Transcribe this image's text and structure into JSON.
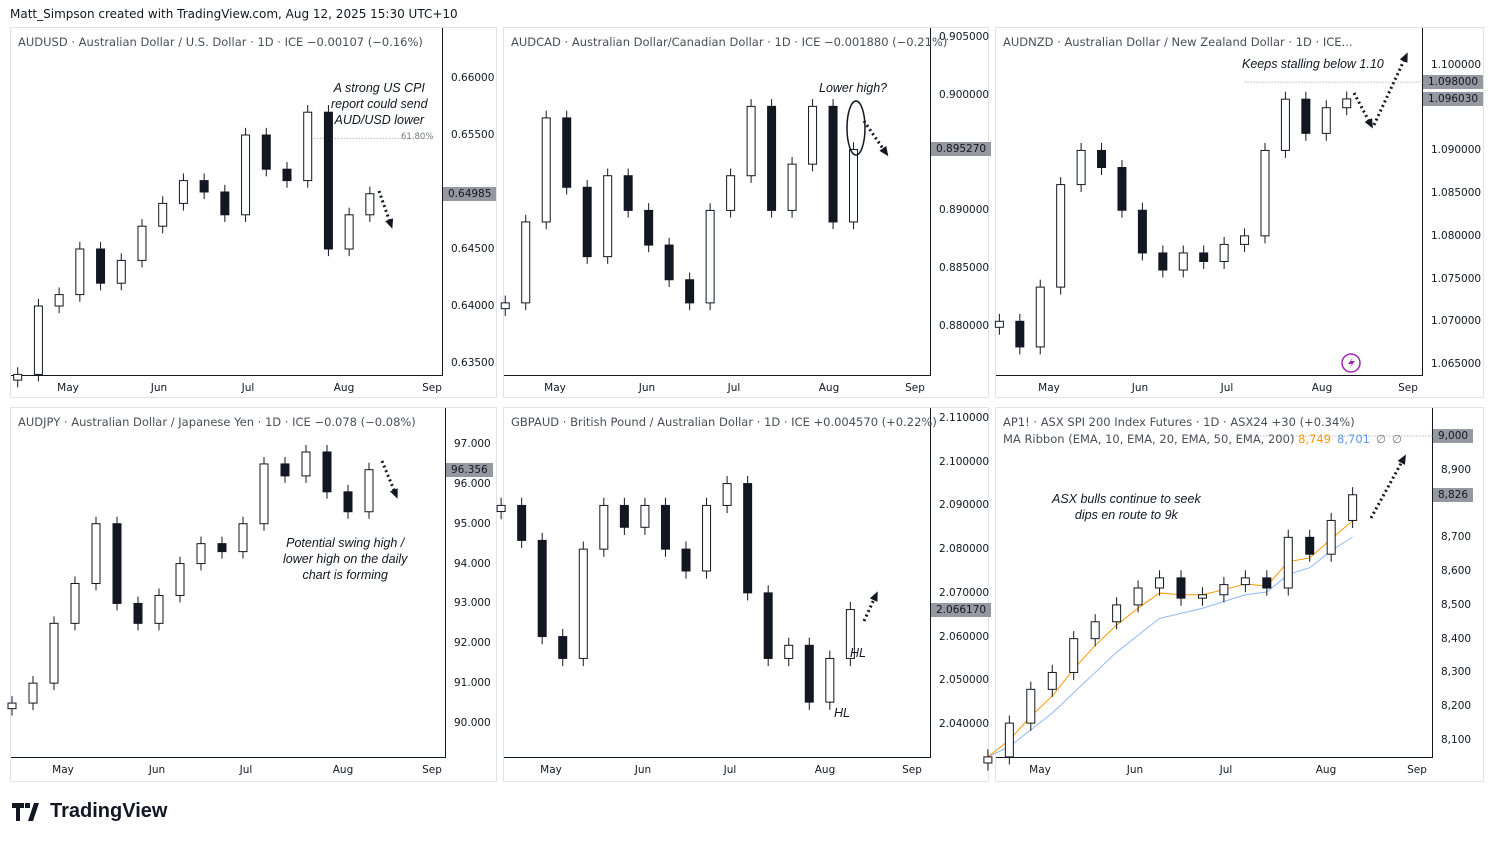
{
  "credit": "Matt_Simpson created with TradingView.com, Aug 12, 2025 15:30 UTC+10",
  "logo": "TradingView",
  "chart_data": [
    {
      "type": "candlestick",
      "id": "audusd",
      "title": "AUDUSD · Australian Dollar / U.S. Dollar · 1D · ICE  −0.00107 (−0.16%)",
      "x_ticks": [
        "May",
        "Jun",
        "Jul",
        "Aug",
        "Sep"
      ],
      "y_ticks": [
        "0.66000",
        "0.65500",
        "0.64500",
        "0.64000",
        "0.63500"
      ],
      "y_tick_values": [
        0.66,
        0.655,
        0.645,
        0.64,
        0.635
      ],
      "ylim": [
        0.6325,
        0.6635
      ],
      "last_price": "0.64985",
      "last_value": 0.64985,
      "fib_label": "61.80%",
      "fib_value": 0.6547,
      "annotation": "A strong US CPI\nreport could send\nAUD/USD lower",
      "x": [
        "Apr 14",
        "Apr 21",
        "Apr 28",
        "May 5",
        "May 12",
        "May 19",
        "May 26",
        "Jun 2",
        "Jun 9",
        "Jun 16",
        "Jun 23",
        "Jun 30",
        "Jul 7",
        "Jul 14",
        "Jul 21",
        "Jul 28",
        "Aug 4",
        "Aug 11"
      ],
      "close": [
        0.634,
        0.64,
        0.641,
        0.645,
        0.642,
        0.644,
        0.647,
        0.649,
        0.651,
        0.65,
        0.648,
        0.655,
        0.652,
        0.651,
        0.657,
        0.645,
        0.648,
        0.64985
      ]
    },
    {
      "type": "candlestick",
      "id": "audcad",
      "title": "AUDCAD · Australian Dollar/Canadian Dollar · 1D · ICE  −0.001880 (−0.21%)",
      "x_ticks": [
        "May",
        "Jun",
        "Jul",
        "Aug",
        "Sep"
      ],
      "y_ticks": [
        "0.905000",
        "0.900000",
        "0.890000",
        "0.885000",
        "0.880000"
      ],
      "y_tick_values": [
        0.905,
        0.9,
        0.89,
        0.885,
        0.88
      ],
      "ylim": [
        0.8765,
        0.9055
      ],
      "last_price": "0.895270",
      "last_value": 0.89527,
      "annotation": "Lower high?",
      "x": [
        "Apr 14",
        "Apr 21",
        "Apr 28",
        "May 5",
        "May 12",
        "May 19",
        "May 26",
        "Jun 2",
        "Jun 9",
        "Jun 16",
        "Jun 23",
        "Jun 30",
        "Jul 7",
        "Jul 14",
        "Jul 21",
        "Jul 28",
        "Aug 4",
        "Aug 11"
      ],
      "close": [
        0.882,
        0.889,
        0.898,
        0.892,
        0.886,
        0.893,
        0.89,
        0.887,
        0.884,
        0.882,
        0.89,
        0.893,
        0.899,
        0.89,
        0.894,
        0.899,
        0.889,
        0.89527
      ]
    },
    {
      "type": "candlestick",
      "id": "audnzd",
      "title": "AUDNZD · Australian Dollar / New Zealand Dollar · 1D · ICE...",
      "x_ticks": [
        "May",
        "Jun",
        "Jul",
        "Aug",
        "Sep"
      ],
      "y_ticks": [
        "1.100000",
        "1.090000",
        "1.085000",
        "1.080000",
        "1.075000",
        "1.070000",
        "1.065000"
      ],
      "y_tick_values": [
        1.1,
        1.09,
        1.085,
        1.08,
        1.075,
        1.07,
        1.065
      ],
      "ylim": [
        1.0625,
        1.1035
      ],
      "last_price": "1.096030",
      "last_value": 1.09603,
      "level_label": "1.098000",
      "level_value": 1.098,
      "annotation": "Keeps stalling below 1.10",
      "x": [
        "Apr 14",
        "Apr 21",
        "Apr 28",
        "May 5",
        "May 12",
        "May 19",
        "May 26",
        "Jun 2",
        "Jun 9",
        "Jun 16",
        "Jun 23",
        "Jun 30",
        "Jul 7",
        "Jul 14",
        "Jul 21",
        "Jul 28",
        "Aug 4",
        "Aug 11"
      ],
      "close": [
        1.07,
        1.067,
        1.074,
        1.086,
        1.09,
        1.088,
        1.083,
        1.078,
        1.076,
        1.078,
        1.077,
        1.079,
        1.08,
        1.09,
        1.096,
        1.092,
        1.095,
        1.09603
      ]
    },
    {
      "type": "candlestick",
      "id": "audjpy",
      "title": "AUDJPY · Australian Dollar / Japanese Yen · 1D · ICE  −0.078 (−0.08%)",
      "x_ticks": [
        "May",
        "Jun",
        "Jul",
        "Aug",
        "Sep"
      ],
      "y_ticks": [
        "97.000",
        "96.000",
        "95.000",
        "94.000",
        "93.000",
        "92.000",
        "91.000",
        "90.000"
      ],
      "y_tick_values": [
        97,
        96,
        95,
        94,
        93,
        92,
        91,
        90
      ],
      "ylim": [
        89.3,
        97.9
      ],
      "last_price": "96.356",
      "last_value": 96.356,
      "annotation": "Potential swing high /\nlower high on the daily\nchart is forming",
      "x": [
        "Apr 14",
        "Apr 21",
        "Apr 28",
        "May 5",
        "May 12",
        "May 19",
        "May 26",
        "Jun 2",
        "Jun 9",
        "Jun 16",
        "Jun 23",
        "Jun 30",
        "Jul 7",
        "Jul 14",
        "Jul 21",
        "Jul 28",
        "Aug 4",
        "Aug 11"
      ],
      "close": [
        90.5,
        91.0,
        92.5,
        93.5,
        95.0,
        93.0,
        92.5,
        93.2,
        94.0,
        94.5,
        94.3,
        95.0,
        96.5,
        96.2,
        96.8,
        95.8,
        95.3,
        96.356
      ]
    },
    {
      "type": "candlestick",
      "id": "gbpaud",
      "title": "GBPAUD · British Pound / Australian Dollar · 1D · ICE  +0.004570 (+0.22%)",
      "x_ticks": [
        "May",
        "Jun",
        "Jul",
        "Aug",
        "Sep"
      ],
      "y_ticks": [
        "2.110000",
        "2.100000",
        "2.090000",
        "2.080000",
        "2.070000",
        "2.060000",
        "2.050000",
        "2.040000"
      ],
      "y_tick_values": [
        2.11,
        2.1,
        2.09,
        2.08,
        2.07,
        2.06,
        2.05,
        2.04
      ],
      "ylim": [
        2.0325,
        2.1125
      ],
      "last_price": "2.066170",
      "last_value": 2.06617,
      "annotations": [
        "HL",
        "HL"
      ],
      "x": [
        "Apr 14",
        "Apr 21",
        "Apr 28",
        "May 5",
        "May 12",
        "May 19",
        "May 26",
        "Jun 2",
        "Jun 9",
        "Jun 16",
        "Jun 23",
        "Jun 30",
        "Jul 7",
        "Jul 14",
        "Jul 21",
        "Jul 28",
        "Aug 4",
        "Aug 11"
      ],
      "close": [
        2.09,
        2.082,
        2.06,
        2.055,
        2.08,
        2.09,
        2.085,
        2.09,
        2.08,
        2.075,
        2.09,
        2.095,
        2.07,
        2.055,
        2.058,
        2.045,
        2.055,
        2.06617
      ]
    },
    {
      "type": "candlestick",
      "id": "ap1",
      "title": "AP1! · ASX SPI 200 Index Futures · 1D · ASX24  +30 (+0.34%)",
      "indicator": {
        "label": "MA Ribbon (EMA, 10, EMA, 20, EMA, 50, EMA, 200)",
        "values": [
          "8,749",
          "8,701",
          "∅",
          "∅"
        ],
        "colors": [
          "#ff9800",
          "#5b9cf6",
          "#787b86",
          "#787b86"
        ]
      },
      "x_ticks": [
        "May",
        "Jun",
        "Jul",
        "Aug",
        "Sep"
      ],
      "y_ticks": [
        "8,900",
        "8,700",
        "8,600",
        "8,500",
        "8,400",
        "8,300",
        "8,200",
        "8,100"
      ],
      "y_tick_values": [
        8900,
        8700,
        8600,
        8500,
        8400,
        8300,
        8200,
        8100
      ],
      "ylim": [
        8030,
        9050
      ],
      "last_price": "8,826",
      "last_value": 8826,
      "level_label": "9,000",
      "level_value": 9000,
      "annotation": "ASX bulls continue to seek\ndips en route to 9k",
      "x": [
        "Apr 14",
        "Apr 21",
        "Apr 28",
        "May 5",
        "May 12",
        "May 19",
        "May 26",
        "Jun 2",
        "Jun 9",
        "Jun 16",
        "Jun 23",
        "Jun 30",
        "Jul 7",
        "Jul 14",
        "Jul 21",
        "Jul 28",
        "Aug 4",
        "Aug 11"
      ],
      "close": [
        8050,
        8150,
        8250,
        8300,
        8400,
        8450,
        8500,
        8550,
        8580,
        8520,
        8530,
        8560,
        8580,
        8550,
        8700,
        8650,
        8750,
        8826
      ],
      "ema10": [
        8050,
        8100,
        8170,
        8230,
        8310,
        8380,
        8440,
        8490,
        8535,
        8530,
        8530,
        8545,
        8562,
        8556,
        8628,
        8639,
        8695,
        8749
      ],
      "ema20": [
        8050,
        8080,
        8130,
        8180,
        8240,
        8300,
        8360,
        8410,
        8460,
        8475,
        8490,
        8510,
        8530,
        8538,
        8590,
        8610,
        8660,
        8701
      ]
    }
  ]
}
